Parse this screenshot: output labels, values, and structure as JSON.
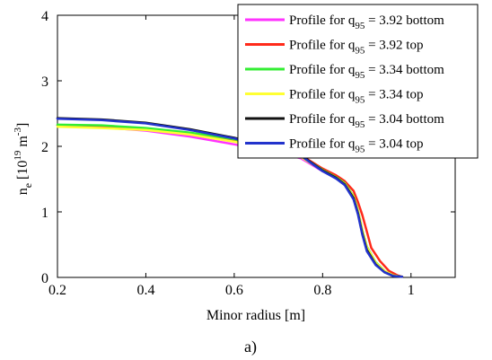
{
  "caption": "a)",
  "chart_data": {
    "type": "line",
    "xlabel": "Minor radius [m]",
    "ylabel": {
      "base": "n",
      "sub": "e",
      "open": " [10",
      "sup1": "19",
      "mid": " m",
      "sup2": "-3",
      "close": "]"
    },
    "xlim": [
      0.2,
      1.1
    ],
    "ylim": [
      0,
      4
    ],
    "xticks": [
      0.2,
      0.4,
      0.6,
      0.8,
      1.0
    ],
    "xtick_labels": [
      "0.2",
      "0.4",
      "0.6",
      "0.8",
      "1"
    ],
    "yticks": [
      0,
      1,
      2,
      3,
      4
    ],
    "ytick_labels": [
      "0",
      "1",
      "2",
      "3",
      "4"
    ],
    "grid": false,
    "legend_position": "top-right",
    "series": [
      {
        "name": {
          "prefix": "Profile for q",
          "sub": "95",
          "suffix": " = 3.92 bottom"
        },
        "color": "#ff33ff",
        "points": [
          [
            0.2,
            2.32
          ],
          [
            0.3,
            2.29
          ],
          [
            0.4,
            2.24
          ],
          [
            0.5,
            2.15
          ],
          [
            0.6,
            2.03
          ],
          [
            0.7,
            1.9
          ],
          [
            0.75,
            1.82
          ],
          [
            0.8,
            1.62
          ],
          [
            0.83,
            1.52
          ],
          [
            0.85,
            1.42
          ],
          [
            0.87,
            1.22
          ],
          [
            0.88,
            1.0
          ],
          [
            0.89,
            0.7
          ],
          [
            0.9,
            0.45
          ],
          [
            0.92,
            0.22
          ],
          [
            0.94,
            0.1
          ],
          [
            0.96,
            0.03
          ],
          [
            0.98,
            0.01
          ]
        ]
      },
      {
        "name": {
          "prefix": "Profile for q",
          "sub": "95",
          "suffix": " = 3.92 top"
        },
        "color": "#ff2a1a",
        "points": [
          [
            0.2,
            2.32
          ],
          [
            0.3,
            2.3
          ],
          [
            0.4,
            2.26
          ],
          [
            0.5,
            2.19
          ],
          [
            0.6,
            2.09
          ],
          [
            0.7,
            1.95
          ],
          [
            0.75,
            1.87
          ],
          [
            0.8,
            1.66
          ],
          [
            0.83,
            1.56
          ],
          [
            0.85,
            1.47
          ],
          [
            0.87,
            1.32
          ],
          [
            0.88,
            1.15
          ],
          [
            0.89,
            0.95
          ],
          [
            0.9,
            0.7
          ],
          [
            0.91,
            0.45
          ],
          [
            0.93,
            0.25
          ],
          [
            0.95,
            0.1
          ],
          [
            0.97,
            0.03
          ],
          [
            0.98,
            0.01
          ]
        ]
      },
      {
        "name": {
          "prefix": "Profile for q",
          "sub": "95",
          "suffix": " = 3.34 bottom"
        },
        "color": "#33ee33",
        "points": [
          [
            0.2,
            2.33
          ],
          [
            0.3,
            2.32
          ],
          [
            0.4,
            2.28
          ],
          [
            0.5,
            2.21
          ],
          [
            0.6,
            2.11
          ],
          [
            0.7,
            1.96
          ],
          [
            0.75,
            1.86
          ],
          [
            0.8,
            1.64
          ],
          [
            0.83,
            1.53
          ],
          [
            0.85,
            1.44
          ],
          [
            0.87,
            1.24
          ],
          [
            0.88,
            1.02
          ],
          [
            0.89,
            0.72
          ],
          [
            0.9,
            0.47
          ],
          [
            0.92,
            0.23
          ],
          [
            0.94,
            0.1
          ],
          [
            0.96,
            0.03
          ],
          [
            0.98,
            0.01
          ]
        ]
      },
      {
        "name": {
          "prefix": "Profile for q",
          "sub": "95",
          "suffix": " = 3.34 top"
        },
        "color": "#ffff33",
        "points": [
          [
            0.2,
            2.3
          ],
          [
            0.3,
            2.28
          ],
          [
            0.4,
            2.25
          ],
          [
            0.5,
            2.18
          ],
          [
            0.6,
            2.07
          ],
          [
            0.7,
            1.93
          ],
          [
            0.75,
            1.84
          ],
          [
            0.8,
            1.63
          ],
          [
            0.83,
            1.52
          ],
          [
            0.85,
            1.43
          ],
          [
            0.87,
            1.23
          ],
          [
            0.88,
            1.01
          ],
          [
            0.89,
            0.71
          ],
          [
            0.9,
            0.46
          ],
          [
            0.92,
            0.22
          ],
          [
            0.94,
            0.1
          ],
          [
            0.96,
            0.03
          ],
          [
            0.98,
            0.01
          ]
        ]
      },
      {
        "name": {
          "prefix": "Profile for q",
          "sub": "95",
          "suffix": " = 3.04 bottom"
        },
        "color": "#111111",
        "points": [
          [
            0.2,
            2.43
          ],
          [
            0.3,
            2.41
          ],
          [
            0.4,
            2.36
          ],
          [
            0.5,
            2.26
          ],
          [
            0.6,
            2.13
          ],
          [
            0.7,
            1.97
          ],
          [
            0.75,
            1.87
          ],
          [
            0.8,
            1.63
          ],
          [
            0.83,
            1.52
          ],
          [
            0.85,
            1.42
          ],
          [
            0.87,
            1.21
          ],
          [
            0.88,
            0.98
          ],
          [
            0.89,
            0.67
          ],
          [
            0.9,
            0.42
          ],
          [
            0.92,
            0.2
          ],
          [
            0.94,
            0.08
          ],
          [
            0.96,
            0.02
          ],
          [
            0.98,
            0.01
          ]
        ]
      },
      {
        "name": {
          "prefix": "Profile for q",
          "sub": "95",
          "suffix": " = 3.04 top"
        },
        "color": "#2233cc",
        "points": [
          [
            0.2,
            2.42
          ],
          [
            0.3,
            2.4
          ],
          [
            0.4,
            2.35
          ],
          [
            0.5,
            2.25
          ],
          [
            0.6,
            2.12
          ],
          [
            0.7,
            1.96
          ],
          [
            0.75,
            1.86
          ],
          [
            0.8,
            1.62
          ],
          [
            0.83,
            1.51
          ],
          [
            0.85,
            1.41
          ],
          [
            0.87,
            1.19
          ],
          [
            0.88,
            0.96
          ],
          [
            0.89,
            0.65
          ],
          [
            0.9,
            0.4
          ],
          [
            0.92,
            0.19
          ],
          [
            0.94,
            0.08
          ],
          [
            0.96,
            0.02
          ],
          [
            0.98,
            0.01
          ]
        ]
      }
    ]
  }
}
